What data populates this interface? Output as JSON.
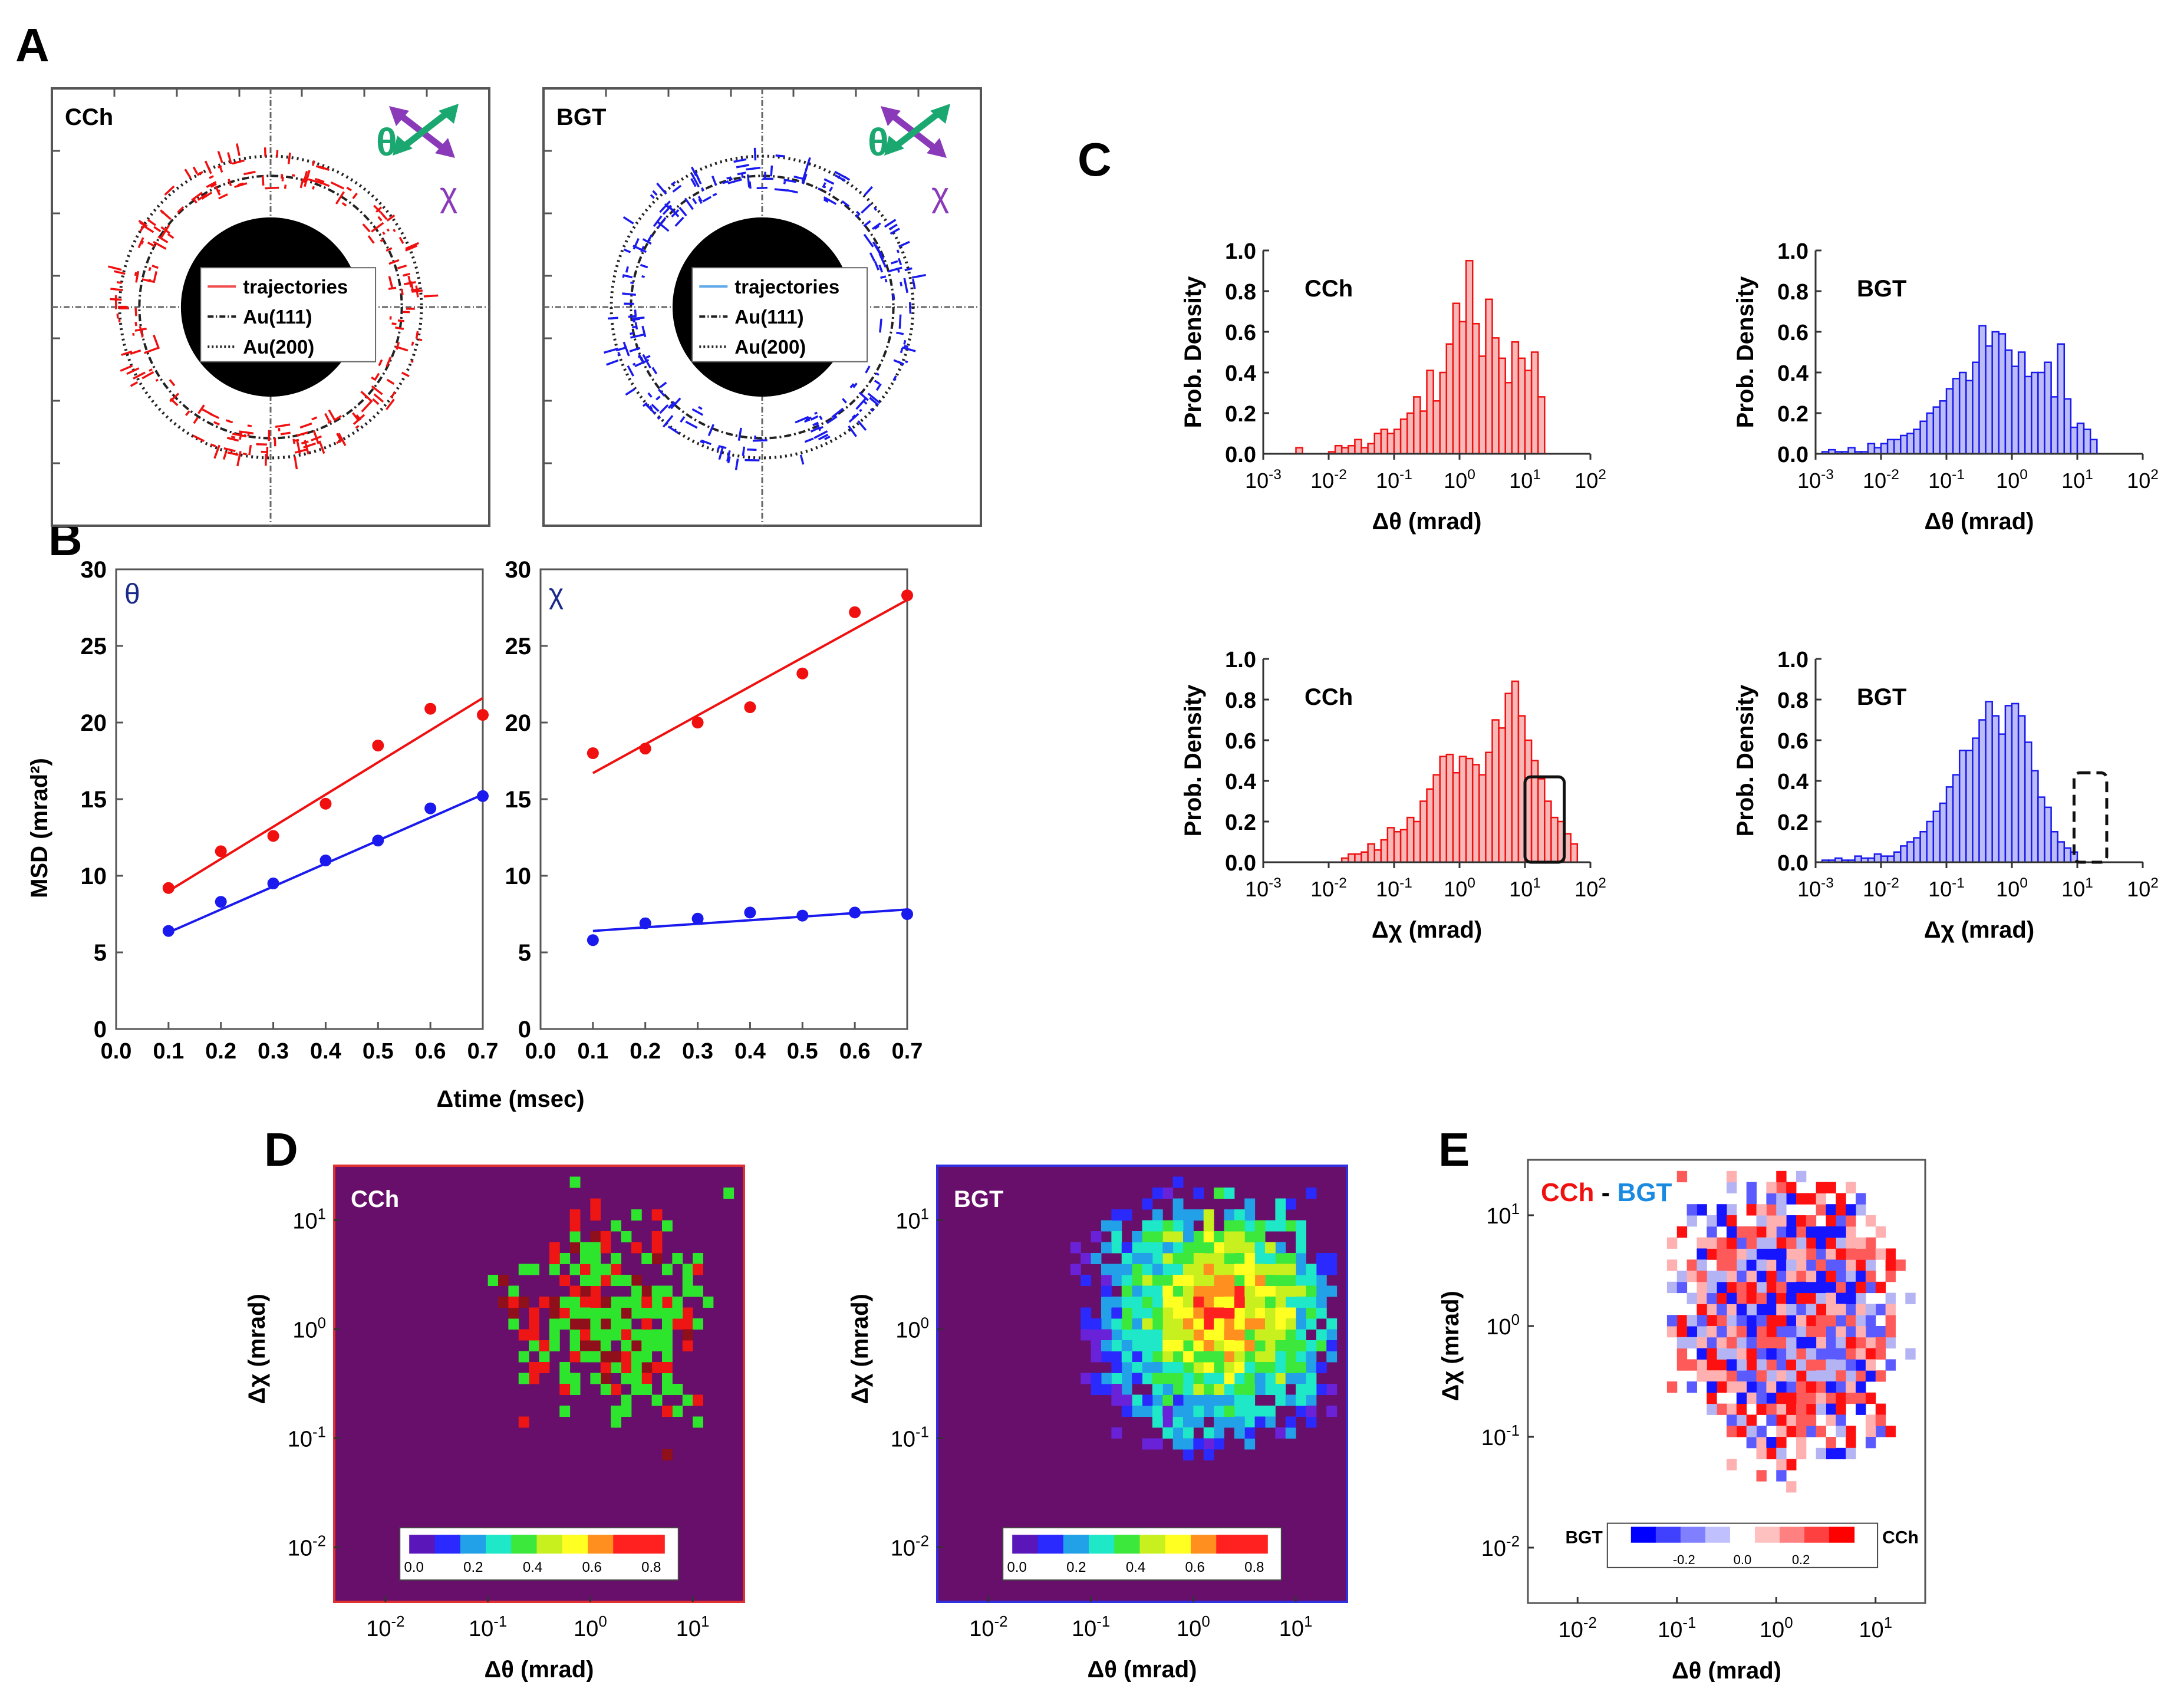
{
  "panel_letters": [
    "A",
    "B",
    "C",
    "D",
    "E"
  ],
  "colors": {
    "ccH": "#f01010",
    "bgt": "#1a1aee",
    "ccH_hist_fill": "#f8b8b8",
    "bgt_hist_fill": "#bcbcf6",
    "arrow_theta": "#1aa870",
    "arrow_chi": "#8a3ab8",
    "heatmap_bg": "#670f6b"
  },
  "panelA": {
    "arrow_theta_label": "θ",
    "arrow_chi_label": "χ",
    "plots": [
      {
        "label": "CCh",
        "legend": [
          "trajectories",
          "Au(111)",
          "Au(200)"
        ],
        "color": "#f01010"
      },
      {
        "label": "BGT",
        "legend": [
          "trajectories",
          "Au(111)",
          "Au(200)"
        ],
        "color": "#1a1aee"
      }
    ]
  },
  "chart_data": [
    {
      "id": "B-theta",
      "type": "scatter",
      "annotation": "θ",
      "ylabel": "MSD (mrad²)",
      "xlabel": "Δtime (msec)",
      "xlim": [
        0.0,
        0.7
      ],
      "ylim": [
        0,
        30
      ],
      "xticks": [
        "0.0",
        "0.1",
        "0.2",
        "0.3",
        "0.4",
        "0.5",
        "0.6",
        "0.7"
      ],
      "yticks": [
        "0",
        "5",
        "10",
        "15",
        "20",
        "25",
        "30"
      ],
      "x": [
        0.1,
        0.2,
        0.3,
        0.4,
        0.5,
        0.6,
        0.7
      ],
      "series": [
        {
          "color": "#f01010",
          "values": [
            9.2,
            11.6,
            12.6,
            14.7,
            18.5,
            20.9,
            20.5
          ],
          "fit": [
            [
              0.1,
              9.0
            ],
            [
              0.7,
              21.6
            ]
          ]
        },
        {
          "color": "#1a1aee",
          "values": [
            6.4,
            8.3,
            9.5,
            11.0,
            12.3,
            14.4,
            15.2
          ],
          "fit": [
            [
              0.1,
              6.3
            ],
            [
              0.7,
              15.3
            ]
          ]
        }
      ]
    },
    {
      "id": "B-chi",
      "type": "scatter",
      "annotation": "χ",
      "xlim": [
        0.0,
        0.7
      ],
      "ylim": [
        0,
        30
      ],
      "xticks": [
        "0.0",
        "0.1",
        "0.2",
        "0.3",
        "0.4",
        "0.5",
        "0.6",
        "0.7"
      ],
      "yticks": [
        "0",
        "5",
        "10",
        "15",
        "20",
        "25",
        "30"
      ],
      "x": [
        0.1,
        0.2,
        0.3,
        0.4,
        0.5,
        0.6,
        0.7
      ],
      "series": [
        {
          "color": "#f01010",
          "values": [
            18.0,
            18.3,
            20.0,
            21.0,
            23.2,
            27.2,
            28.3
          ],
          "fit": [
            [
              0.1,
              16.7
            ],
            [
              0.7,
              28.0
            ]
          ]
        },
        {
          "color": "#1a1aee",
          "values": [
            5.8,
            6.9,
            7.2,
            7.6,
            7.4,
            7.6,
            7.5
          ],
          "fit": [
            [
              0.1,
              6.4
            ],
            [
              0.7,
              7.8
            ]
          ]
        }
      ]
    },
    {
      "id": "C-ccH-theta",
      "type": "bar",
      "label": "CCh",
      "xscale": "log",
      "ylabel": "Prob. Density",
      "xlabel": "Δθ (mrad)",
      "xlim_log10": [
        -3,
        2
      ],
      "ylim": [
        0,
        1.0
      ],
      "yticks": [
        "0.0",
        "0.2",
        "0.4",
        "0.6",
        "0.8",
        "1.0"
      ],
      "xticks": [
        "10-3",
        "10-2",
        "10-1",
        "100",
        "101",
        "102"
      ],
      "color": "#f01010",
      "bin_log10": [
        -2.5,
        1.3,
        0.1
      ],
      "values": [
        0.03,
        0,
        0,
        0,
        0,
        0.01,
        0.04,
        0.03,
        0.04,
        0.07,
        0.03,
        0.05,
        0.1,
        0.12,
        0.1,
        0.12,
        0.17,
        0.2,
        0.28,
        0.21,
        0.41,
        0.26,
        0.4,
        0.54,
        0.74,
        0.65,
        0.95,
        0.64,
        0.48,
        0.76,
        0.57,
        0.47,
        0.35,
        0.55,
        0.47,
        0.41,
        0.5,
        0.28
      ]
    },
    {
      "id": "C-bgt-theta",
      "type": "bar",
      "label": "BGT",
      "xscale": "log",
      "ylabel": "Prob. Density",
      "xlabel": "Δθ (mrad)",
      "xlim_log10": [
        -3,
        2
      ],
      "ylim": [
        0,
        1.0
      ],
      "yticks": [
        "0.0",
        "0.2",
        "0.4",
        "0.6",
        "0.8",
        "1.0"
      ],
      "xticks": [
        "10-3",
        "10-2",
        "10-1",
        "100",
        "101",
        "102"
      ],
      "color": "#1a1aee",
      "bin_log10": [
        -2.9,
        1.3,
        0.1
      ],
      "values": [
        0.01,
        0.02,
        0.01,
        0.01,
        0.03,
        0.01,
        0.01,
        0.05,
        0.03,
        0.05,
        0.07,
        0.07,
        0.09,
        0.1,
        0.12,
        0.16,
        0.2,
        0.23,
        0.26,
        0.32,
        0.37,
        0.4,
        0.36,
        0.45,
        0.63,
        0.53,
        0.6,
        0.59,
        0.51,
        0.43,
        0.5,
        0.38,
        0.4,
        0.4,
        0.45,
        0.28,
        0.54,
        0.27,
        0.13,
        0.15,
        0.12,
        0.07
      ]
    },
    {
      "id": "C-ccH-chi",
      "type": "bar",
      "label": "CCh",
      "xscale": "log",
      "ylabel": "Prob. Density",
      "xlabel": "Δχ (mrad)",
      "xlim_log10": [
        -3,
        2
      ],
      "ylim": [
        0,
        1.0
      ],
      "yticks": [
        "0.0",
        "0.2",
        "0.4",
        "0.6",
        "0.8",
        "1.0"
      ],
      "xticks": [
        "10-3",
        "10-2",
        "10-1",
        "100",
        "101",
        "102"
      ],
      "color": "#f01010",
      "highlight_box": {
        "style": "solid",
        "x_log10": [
          1.0,
          1.6
        ],
        "y": [
          0.0,
          0.42
        ]
      },
      "bin_log10": [
        -1.8,
        1.6,
        0.1
      ],
      "values": [
        0.02,
        0.04,
        0.04,
        0.05,
        0.09,
        0.06,
        0.11,
        0.17,
        0.15,
        0.16,
        0.22,
        0.2,
        0.3,
        0.36,
        0.43,
        0.52,
        0.53,
        0.44,
        0.52,
        0.51,
        0.48,
        0.43,
        0.54,
        0.7,
        0.66,
        0.83,
        0.89,
        0.72,
        0.6,
        0.5,
        0.41,
        0.3,
        0.22,
        0.2,
        0.14,
        0.09
      ]
    },
    {
      "id": "C-bgt-chi",
      "type": "bar",
      "label": "BGT",
      "xscale": "log",
      "ylabel": "Prob. Density",
      "xlabel": "Δχ (mrad)",
      "xlim_log10": [
        -3,
        2
      ],
      "ylim": [
        0,
        1.0
      ],
      "yticks": [
        "0.0",
        "0.2",
        "0.4",
        "0.6",
        "0.8",
        "1.0"
      ],
      "xticks": [
        "10-3",
        "10-2",
        "10-1",
        "100",
        "101",
        "102"
      ],
      "color": "#1a1aee",
      "highlight_box": {
        "style": "dashed",
        "x_log10": [
          0.95,
          1.45
        ],
        "y": [
          0.0,
          0.44
        ]
      },
      "bin_log10": [
        -2.9,
        1.0,
        0.1
      ],
      "values": [
        0.01,
        0.01,
        0.02,
        0.01,
        0.01,
        0.03,
        0.02,
        0.02,
        0.04,
        0.03,
        0.03,
        0.05,
        0.08,
        0.1,
        0.12,
        0.15,
        0.2,
        0.25,
        0.29,
        0.37,
        0.43,
        0.55,
        0.55,
        0.61,
        0.7,
        0.79,
        0.72,
        0.63,
        0.77,
        0.78,
        0.72,
        0.59,
        0.45,
        0.32,
        0.27,
        0.15,
        0.1,
        0.07,
        0.05
      ]
    },
    {
      "id": "D-ccH",
      "type": "heatmap",
      "label": "CCh",
      "xscale": "log",
      "yscale": "log",
      "xlabel": "Δθ (mrad)",
      "ylabel": "Δχ (mrad)",
      "xlim_log10": [
        -2.5,
        1.5
      ],
      "ylim_log10": [
        -2.5,
        1.5
      ],
      "xticks": [
        "10-2",
        "10-1",
        "100",
        "101"
      ],
      "yticks": [
        "10-2",
        "10-1",
        "100",
        "101"
      ],
      "colorbar_ticks": [
        "0.0",
        "0.2",
        "0.4",
        "0.6",
        "0.8"
      ],
      "grid_cells": 40,
      "n_cells": 190,
      "palette": [
        "#2ee52e",
        "#ee1515",
        "#8f0f1a"
      ]
    },
    {
      "id": "D-bgt",
      "type": "heatmap",
      "label": "BGT",
      "xscale": "log",
      "yscale": "log",
      "xlabel": "Δθ (mrad)",
      "ylabel": "Δχ (mrad)",
      "xlim_log10": [
        -2.5,
        1.5
      ],
      "ylim_log10": [
        -2.5,
        1.5
      ],
      "xticks": [
        "10-2",
        "10-1",
        "100",
        "101"
      ],
      "yticks": [
        "10-2",
        "10-1",
        "100",
        "101"
      ],
      "colorbar_ticks": [
        "0.0",
        "0.2",
        "0.4",
        "0.6",
        "0.8"
      ],
      "grid_cells": 40,
      "n_cells": 440,
      "palette": [
        "#6a22d8",
        "#2a2aff",
        "#22a0e8",
        "#1ee8c8",
        "#3ce83c",
        "#c8f01e",
        "#ffff22",
        "#ff9020",
        "#ff2020"
      ]
    },
    {
      "id": "E-diff",
      "type": "heatmap",
      "title_left": "CCh",
      "title_sep": " - ",
      "title_right": "BGT",
      "xscale": "log",
      "yscale": "log",
      "xlabel": "Δθ (mrad)",
      "ylabel": "Δχ (mrad)",
      "xlim_log10": [
        -2.5,
        1.5
      ],
      "ylim_log10": [
        -2.5,
        1.5
      ],
      "xticks": [
        "10-2",
        "10-1",
        "100",
        "101"
      ],
      "yticks": [
        "10-2",
        "10-1",
        "100",
        "101"
      ],
      "colorbar_left": "BGT",
      "colorbar_right": "CCh",
      "colorbar_ticks": [
        "-0.2",
        "0.0",
        "0.2"
      ],
      "grid_cells": 40,
      "n_cells": 430,
      "palette": [
        "#ff1010",
        "#ff5a5a",
        "#ffb0b0",
        "#1515ff",
        "#5a5aff",
        "#b4b4f4"
      ]
    }
  ]
}
